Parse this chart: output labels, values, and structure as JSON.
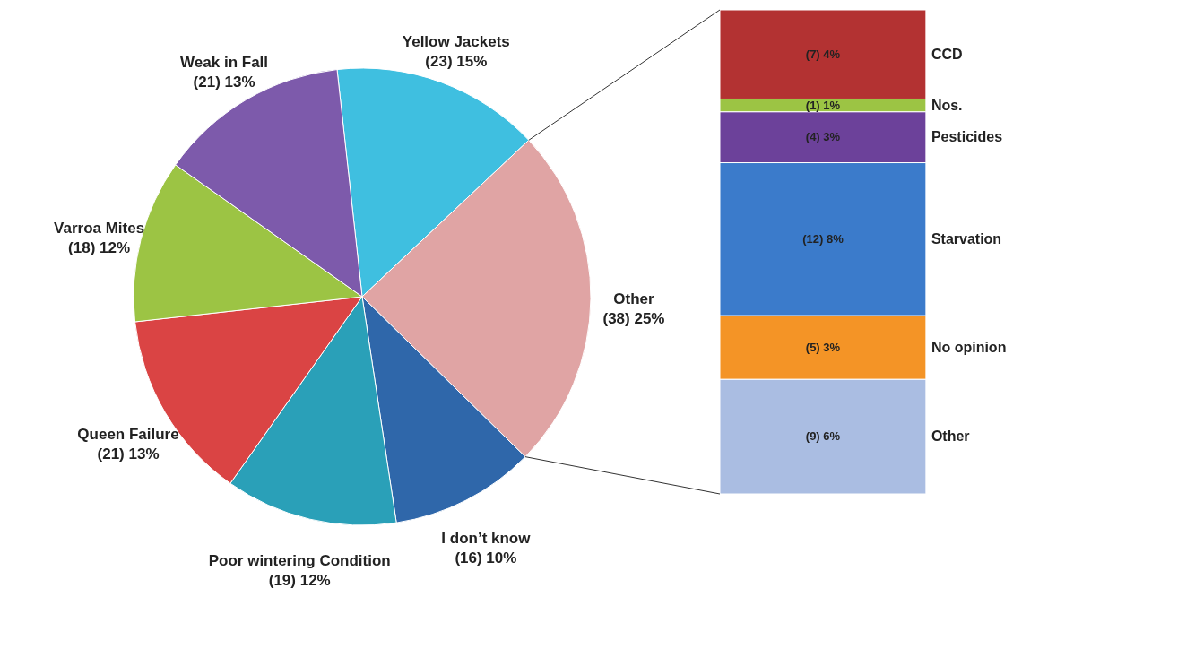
{
  "chart_data": [
    {
      "type": "pie",
      "categories": [
        "Yellow Jackets",
        "Other",
        "I don’t know",
        "Poor wintering Condition",
        "Queen Failure",
        "Varroa Mites",
        "Weak in Fall"
      ],
      "values": [
        23,
        38,
        16,
        19,
        21,
        18,
        21
      ],
      "colors": [
        "#3fbfe0",
        "#e0a4a4",
        "#2f67aa",
        "#2aa0b8",
        "#da4444",
        "#9cc444",
        "#7d5aab"
      ],
      "value_labels": [
        "(23) 15%",
        "(38) 25%",
        "(16) 10%",
        "(19) 12%",
        "(21) 13%",
        "(18) 12%",
        "(21) 13%"
      ]
    },
    {
      "type": "bar",
      "stacked": true,
      "categories": [
        null
      ],
      "series": [
        {
          "name": "Other",
          "color": "#aabde2",
          "values": [
            9
          ],
          "value_labels": [
            "(9) 6%"
          ]
        },
        {
          "name": "No opinion",
          "color": "#f49426",
          "values": [
            5
          ],
          "value_labels": [
            "(5) 3%"
          ]
        },
        {
          "name": "Starvation",
          "color": "#3b7bcb",
          "values": [
            12
          ],
          "value_labels": [
            "(12) 8%"
          ]
        },
        {
          "name": "Pesticides",
          "color": "#6c419a",
          "values": [
            4
          ],
          "value_labels": [
            "(4) 3%"
          ]
        },
        {
          "name": "Nos.",
          "color": "#9cc444",
          "values": [
            1
          ],
          "value_labels": [
            "(1) 1%"
          ]
        },
        {
          "name": "CCD",
          "color": "#b33232",
          "values": [
            7
          ],
          "value_labels": [
            "(7) 4%"
          ]
        }
      ]
    }
  ]
}
